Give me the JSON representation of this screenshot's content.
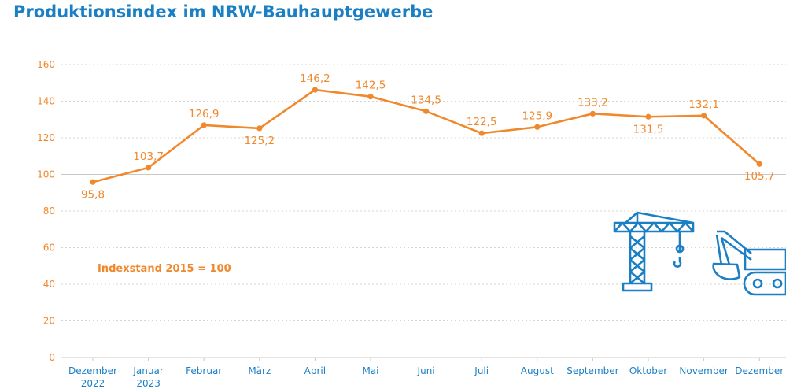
{
  "colors": {
    "title": "#1b7fc4",
    "line": "#f0892d",
    "axis_labels": "#1b7fc4",
    "icons": "#1b7fc4",
    "grid": "#c8c8c8"
  },
  "title": "Produktionsindex im NRW-Bauhauptgewerbe",
  "annotation": "Indexstand 2015 = 100",
  "icons": [
    "crane-icon",
    "excavator-icon"
  ],
  "chart_data": {
    "type": "line",
    "title": "Produktionsindex im NRW-Bauhauptgewerbe",
    "xlabel": "",
    "ylabel": "",
    "ylim": [
      0,
      160
    ],
    "yticks": [
      0,
      20,
      40,
      60,
      80,
      100,
      120,
      140,
      160
    ],
    "grid": true,
    "categories": [
      [
        "Dezember",
        "2022"
      ],
      [
        "Januar",
        "2023"
      ],
      [
        "Februar"
      ],
      [
        "März"
      ],
      [
        "April"
      ],
      [
        "Mai"
      ],
      [
        "Juni"
      ],
      [
        "Juli"
      ],
      [
        "August"
      ],
      [
        "September"
      ],
      [
        "Oktober"
      ],
      [
        "November"
      ],
      [
        "Dezember"
      ]
    ],
    "values": [
      95.8,
      103.7,
      126.9,
      125.2,
      146.2,
      142.5,
      134.5,
      122.5,
      125.9,
      133.2,
      131.5,
      132.1,
      105.7
    ],
    "labels": [
      "95,8",
      "103,7",
      "126,9",
      "125,2",
      "146,2",
      "142,5",
      "134,5",
      "122,5",
      "125,9",
      "133,2",
      "131,5",
      "132,1",
      "105,7"
    ],
    "label_positions": [
      "below",
      "above",
      "above",
      "below",
      "above",
      "above",
      "above",
      "above",
      "above",
      "above",
      "below",
      "above",
      "below"
    ]
  }
}
